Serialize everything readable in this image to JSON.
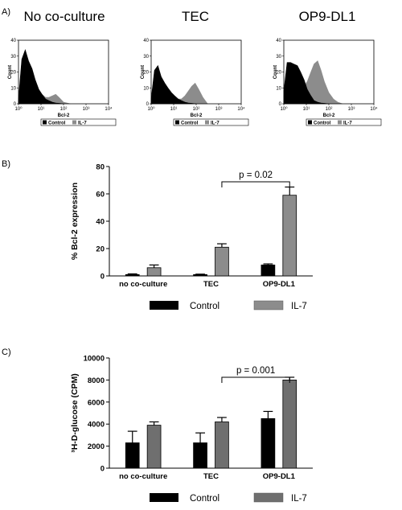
{
  "panel_letters": [
    "A)",
    "B)",
    "C)"
  ],
  "histograms": {
    "titles": [
      "No co-culture",
      "TEC",
      "OP9-DL1"
    ],
    "xlabel": "Bcl-2",
    "ylabel": "Count",
    "legend": [
      "Control",
      "IL-7"
    ]
  },
  "colors": {
    "control": "#000000",
    "il7": "#8c8c8c",
    "il7_dark": "#6f6f6f"
  },
  "chart_data": [
    {
      "type": "line",
      "panel": "A)",
      "title": "No co-culture",
      "xlabel": "Bcl-2",
      "ylabel": "Count",
      "x_scale": "log",
      "xlim": [
        1,
        10000
      ],
      "ylim": [
        0,
        40
      ],
      "x_ticks": [
        "10⁰",
        "10¹",
        "10²",
        "10³",
        "10⁴"
      ],
      "y_ticks": [
        "0",
        "10",
        "20",
        "30",
        "40"
      ],
      "series": [
        {
          "name": "Control",
          "x": [
            1,
            1.4,
            2,
            2.8,
            4,
            5.6,
            8,
            11,
            16,
            22,
            32,
            45,
            63,
            100
          ],
          "y": [
            3,
            28,
            34,
            27,
            22,
            15,
            9,
            6,
            3,
            2,
            1,
            0.5,
            0.3,
            0
          ]
        },
        {
          "name": "IL-7",
          "x": [
            1,
            1.4,
            2,
            2.8,
            4,
            5.6,
            8,
            11,
            16,
            22,
            32,
            45,
            63,
            100,
            200
          ],
          "y": [
            1,
            15,
            16,
            14,
            11,
            9,
            7,
            6,
            4,
            4,
            5,
            6,
            4,
            1,
            0
          ]
        }
      ]
    },
    {
      "type": "line",
      "panel": "A)",
      "title": "TEC",
      "xlabel": "Bcl-2",
      "ylabel": "Count",
      "x_scale": "log",
      "xlim": [
        1,
        10000
      ],
      "ylim": [
        0,
        40
      ],
      "x_ticks": [
        "10⁰",
        "10¹",
        "10²",
        "10³",
        "10⁴"
      ],
      "y_ticks": [
        "0",
        "10",
        "20",
        "30",
        "40"
      ],
      "series": [
        {
          "name": "Control",
          "x": [
            1,
            1.4,
            2,
            2.8,
            4,
            5.6,
            8,
            11,
            16,
            22,
            32,
            45,
            63,
            100
          ],
          "y": [
            3,
            21,
            24,
            17,
            13,
            10,
            7,
            5,
            3,
            2,
            1,
            0.5,
            0.3,
            0
          ]
        },
        {
          "name": "IL-7",
          "x": [
            1,
            1.4,
            2,
            2.8,
            4,
            5.6,
            8,
            11,
            16,
            22,
            32,
            45,
            63,
            90,
            130,
            200,
            320
          ],
          "y": [
            1,
            12,
            13,
            11,
            8,
            6,
            4,
            3,
            3,
            3,
            5,
            8,
            11,
            13,
            9,
            4,
            0
          ]
        }
      ]
    },
    {
      "type": "line",
      "panel": "A)",
      "title": "OP9-DL1",
      "xlabel": "Bcl-2",
      "ylabel": "Count",
      "x_scale": "log",
      "xlim": [
        1,
        10000
      ],
      "ylim": [
        0,
        40
      ],
      "x_ticks": [
        "10⁰",
        "10¹",
        "10²",
        "10³",
        "10⁴"
      ],
      "y_ticks": [
        "0",
        "10",
        "20",
        "30",
        "40"
      ],
      "series": [
        {
          "name": "Control",
          "x": [
            1,
            1.4,
            2,
            2.8,
            4,
            5.6,
            8,
            11,
            16,
            22,
            32,
            45,
            63,
            100
          ],
          "y": [
            8,
            26,
            26,
            25,
            24,
            20,
            15,
            9,
            5,
            2,
            1,
            0.5,
            0.3,
            0
          ]
        },
        {
          "name": "IL-7",
          "x": [
            1,
            1.4,
            2,
            2.8,
            4,
            5.6,
            8,
            11,
            16,
            22,
            32,
            45,
            63,
            100,
            160,
            250,
            400
          ],
          "y": [
            5,
            20,
            25,
            23,
            17,
            13,
            11,
            14,
            20,
            25,
            27,
            21,
            14,
            7,
            3,
            1,
            0
          ]
        }
      ]
    },
    {
      "type": "bar",
      "panel": "B)",
      "categories": [
        "no co-culture",
        "TEC",
        "OP9-DL1"
      ],
      "ylabel": "% Bcl-2 expression",
      "ylim": [
        0,
        80
      ],
      "y_ticks": [
        0,
        20,
        40,
        60,
        80
      ],
      "series": [
        {
          "name": "Control",
          "values": [
            1,
            1,
            8
          ],
          "errors": [
            0.5,
            0.3,
            0.8
          ]
        },
        {
          "name": "IL-7",
          "values": [
            6,
            21,
            59
          ],
          "errors": [
            2,
            2.5,
            6
          ]
        }
      ],
      "annotation": {
        "text": "p = 0.02",
        "between": [
          "TEC",
          "OP9-DL1"
        ],
        "series": "IL-7"
      },
      "legend_position": "bottom"
    },
    {
      "type": "bar",
      "panel": "C)",
      "categories": [
        "no co-culture",
        "TEC",
        "OP9-DL1"
      ],
      "ylabel": "³H-D-glucose (CPM)",
      "ylim": [
        0,
        10000
      ],
      "y_ticks": [
        0,
        2000,
        4000,
        6000,
        8000,
        10000
      ],
      "series": [
        {
          "name": "Control",
          "values": [
            2300,
            2300,
            4500
          ],
          "errors": [
            1050,
            900,
            650
          ]
        },
        {
          "name": "IL-7",
          "values": [
            3900,
            4200,
            8000
          ],
          "errors": [
            300,
            400,
            250
          ]
        }
      ],
      "annotation": {
        "text": "p = 0.001",
        "between": [
          "TEC",
          "OP9-DL1"
        ],
        "series": "IL-7"
      },
      "legend_position": "bottom"
    }
  ]
}
